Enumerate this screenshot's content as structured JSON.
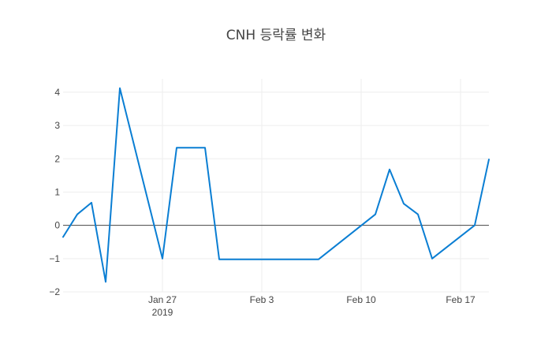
{
  "chart_data": {
    "type": "line",
    "title": "CNH 등락률 변화",
    "xlabel": "",
    "ylabel": "",
    "grid": true,
    "legend": "none",
    "xlim": [
      "2019-01-20",
      "2019-02-19"
    ],
    "ylim": [
      -2,
      4.4
    ],
    "x_ticks": [
      {
        "date": "2019-01-27",
        "label": "Jan 27",
        "sublabel": "2019"
      },
      {
        "date": "2019-02-03",
        "label": "Feb 3",
        "sublabel": ""
      },
      {
        "date": "2019-02-10",
        "label": "Feb 10",
        "sublabel": ""
      },
      {
        "date": "2019-02-17",
        "label": "Feb 17",
        "sublabel": ""
      }
    ],
    "y_ticks": [
      -2,
      -1,
      0,
      1,
      2,
      3,
      4
    ],
    "y_tick_labels": [
      "−2",
      "−1",
      "0",
      "1",
      "2",
      "3",
      "4"
    ],
    "series": [
      {
        "color": "#0a7ed3",
        "points": [
          {
            "x": "2019-01-20",
            "y": -0.35
          },
          {
            "x": "2019-01-21",
            "y": 0.33
          },
          {
            "x": "2019-01-22",
            "y": 0.68
          },
          {
            "x": "2019-01-23",
            "y": -1.7
          },
          {
            "x": "2019-01-24",
            "y": 4.12
          },
          {
            "x": "2019-01-27",
            "y": -1.0
          },
          {
            "x": "2019-01-28",
            "y": 2.33
          },
          {
            "x": "2019-01-30",
            "y": 2.33
          },
          {
            "x": "2019-01-31",
            "y": -1.02
          },
          {
            "x": "2019-02-07",
            "y": -1.02
          },
          {
            "x": "2019-02-11",
            "y": 0.33
          },
          {
            "x": "2019-02-12",
            "y": 1.68
          },
          {
            "x": "2019-02-13",
            "y": 0.65
          },
          {
            "x": "2019-02-14",
            "y": 0.33
          },
          {
            "x": "2019-02-15",
            "y": -1.0
          },
          {
            "x": "2019-02-18",
            "y": 0.0
          },
          {
            "x": "2019-02-19",
            "y": 1.98
          }
        ]
      }
    ]
  }
}
